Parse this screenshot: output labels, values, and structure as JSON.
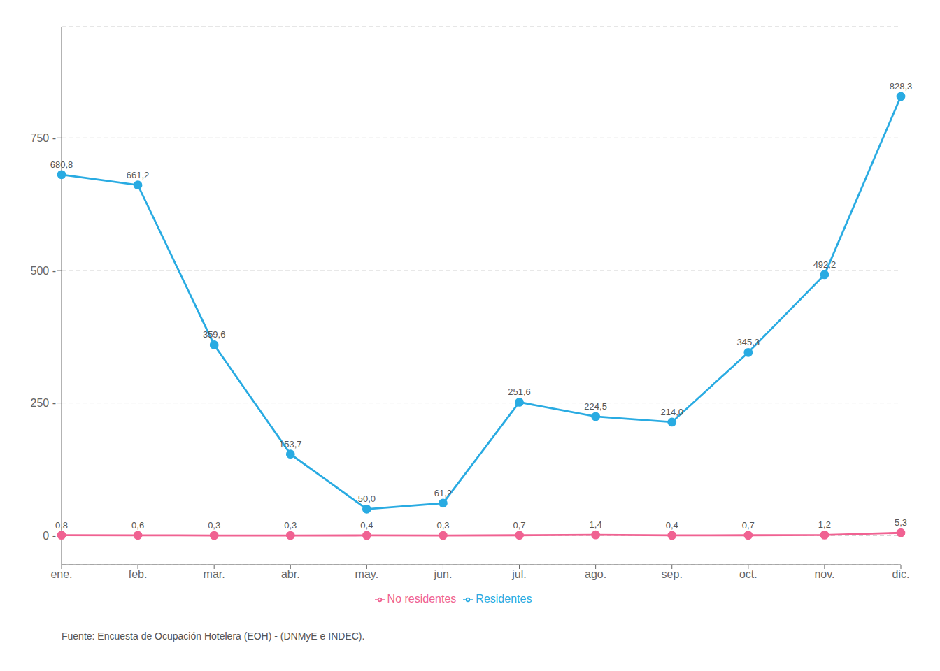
{
  "chart_data": {
    "type": "line",
    "categories": [
      "ene.",
      "feb.",
      "mar.",
      "abr.",
      "may.",
      "jun.",
      "jul.",
      "ago.",
      "sep.",
      "oct.",
      "nov.",
      "dic."
    ],
    "series": [
      {
        "name": "Residentes",
        "color": "#29ABE2",
        "marker": "circle",
        "values": [
          680.8,
          661.2,
          359.6,
          153.7,
          50.0,
          61.2,
          251.6,
          224.5,
          214.0,
          345.3,
          492.2,
          828.3
        ],
        "value_labels": [
          "680,8",
          "661,2",
          "359,6",
          "153,7",
          "50,0",
          "61,2",
          "251,6",
          "224,5",
          "214,0",
          "345,3",
          "492,2",
          "828,3"
        ]
      },
      {
        "name": "No residentes",
        "color": "#F06292",
        "marker": "circle",
        "values": [
          0.8,
          0.6,
          0.3,
          0.3,
          0.4,
          0.3,
          0.7,
          1.4,
          0.4,
          0.7,
          1.2,
          5.3
        ],
        "value_labels": [
          "0,8",
          "0,6",
          "0,3",
          "0,3",
          "0,4",
          "0,3",
          "0,7",
          "1,4",
          "0,4",
          "0,7",
          "1,2",
          "5,3"
        ]
      }
    ],
    "ylim": [
      -55,
      960
    ],
    "yticks": [
      {
        "value": 0,
        "label": "0 -"
      },
      {
        "value": 250,
        "label": "250 -"
      },
      {
        "value": 500,
        "label": "500 -"
      },
      {
        "value": 750,
        "label": "750 -"
      }
    ],
    "grid": true,
    "legend": "bottom",
    "data_labels": true,
    "annotations": [
      "Fuente: Encuesta de Ocupación Hotelera (EOH) - (DNMyE e INDEC)."
    ]
  }
}
